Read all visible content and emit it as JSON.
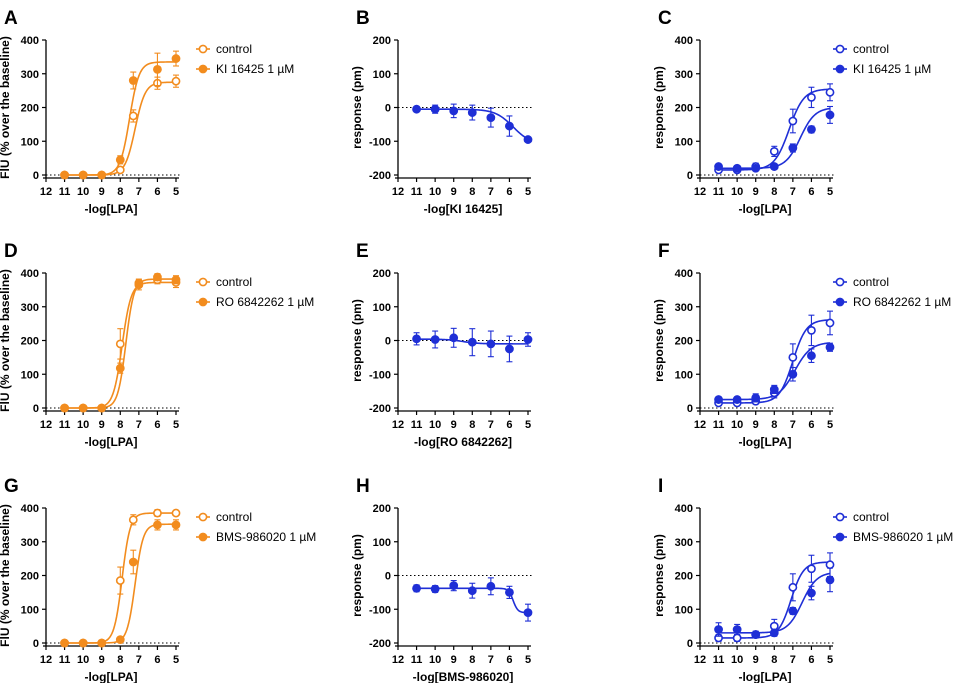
{
  "figure": {
    "colors": {
      "orange": "#F28C1E",
      "blue": "#1F2FD6",
      "axis": "#000000"
    },
    "panels_order": [
      "A",
      "B",
      "C",
      "D",
      "E",
      "F",
      "G",
      "H",
      "I"
    ]
  },
  "chart_data": [
    {
      "panel": "A",
      "type": "scatter",
      "ylabel": "FlU (% over the baseline)",
      "xlabel": "-log[LPA]",
      "xlim": [
        12,
        5
      ],
      "ylim": [
        0,
        400
      ],
      "xticks": [
        "12",
        "11",
        "10",
        "9",
        "8",
        "7",
        "6",
        "5"
      ],
      "yticks": [
        "0",
        "100",
        "200",
        "300",
        "400"
      ],
      "color": "orange",
      "legend": [
        "control",
        "KI 16425 1 µM"
      ],
      "x": [
        11,
        10,
        9,
        8,
        7.3,
        6,
        5
      ],
      "series": [
        {
          "name": "control",
          "marker": "open",
          "values": [
            0,
            0,
            0,
            15,
            175,
            272,
            278
          ],
          "errors": [
            3,
            3,
            3,
            8,
            18,
            18,
            18
          ]
        },
        {
          "name": "KI 16425 1 µM",
          "marker": "filled",
          "values": [
            0,
            0,
            0,
            45,
            280,
            313,
            345
          ],
          "errors": [
            3,
            3,
            3,
            12,
            25,
            48,
            22
          ]
        }
      ],
      "fits": [
        {
          "bottom": 0,
          "top": 275,
          "logec50": 7.2,
          "hill": 1.6
        },
        {
          "bottom": 0,
          "top": 335,
          "logec50": 7.5,
          "hill": 1.7
        }
      ]
    },
    {
      "panel": "B",
      "type": "scatter",
      "ylabel": "response (pm)",
      "xlabel": "-log[KI 16425]",
      "xlim": [
        12,
        5
      ],
      "ylim": [
        -200,
        200
      ],
      "xticks": [
        "12",
        "11",
        "10",
        "9",
        "8",
        "7",
        "6",
        "5"
      ],
      "yticks": [
        "-200",
        "-100",
        "0",
        "100",
        "200"
      ],
      "color": "blue",
      "legend": [],
      "x": [
        11,
        10,
        9,
        8,
        7,
        6,
        5
      ],
      "series": [
        {
          "name": "KI 16425",
          "marker": "filled",
          "values": [
            -5,
            -5,
            -10,
            -15,
            -30,
            -55,
            -95
          ],
          "errors": [
            8,
            12,
            20,
            22,
            28,
            30,
            5
          ]
        }
      ],
      "fits": [
        {
          "bottom": -5,
          "top": -110,
          "logec50": 5.8,
          "hill": 0.9
        }
      ]
    },
    {
      "panel": "C",
      "type": "scatter",
      "ylabel": "response (pm)",
      "xlabel": "-log[LPA]",
      "xlim": [
        12,
        5
      ],
      "ylim": [
        0,
        400
      ],
      "xticks": [
        "12",
        "11",
        "10",
        "9",
        "8",
        "7",
        "6",
        "5"
      ],
      "yticks": [
        "0",
        "100",
        "200",
        "300",
        "400"
      ],
      "color": "blue",
      "legend": [
        "control",
        "KI 16425 1 µM"
      ],
      "x": [
        11,
        10,
        9,
        8,
        7,
        6,
        5
      ],
      "series": [
        {
          "name": "control",
          "marker": "open",
          "values": [
            15,
            15,
            25,
            70,
            160,
            230,
            245
          ],
          "errors": [
            8,
            8,
            10,
            15,
            35,
            30,
            25
          ]
        },
        {
          "name": "KI 16425 1 µM",
          "marker": "filled",
          "values": [
            25,
            20,
            20,
            25,
            80,
            135,
            178
          ],
          "errors": [
            5,
            5,
            5,
            8,
            12,
            10,
            25
          ]
        }
      ],
      "fits": [
        {
          "bottom": 15,
          "top": 255,
          "logec50": 7.2,
          "hill": 1.1
        },
        {
          "bottom": 20,
          "top": 200,
          "logec50": 6.6,
          "hill": 1.1
        }
      ]
    },
    {
      "panel": "D",
      "type": "scatter",
      "ylabel": "FlU (% over the baseline)",
      "xlabel": "-log[LPA]",
      "xlim": [
        12,
        5
      ],
      "ylim": [
        0,
        400
      ],
      "xticks": [
        "12",
        "11",
        "10",
        "9",
        "8",
        "7",
        "6",
        "5"
      ],
      "yticks": [
        "0",
        "100",
        "200",
        "300",
        "400"
      ],
      "color": "orange",
      "legend": [
        "control",
        "RO 6842262 1 µM"
      ],
      "x": [
        11,
        10,
        9,
        8,
        7,
        6,
        5
      ],
      "series": [
        {
          "name": "control",
          "marker": "open",
          "values": [
            0,
            0,
            0,
            190,
            365,
            380,
            372
          ],
          "errors": [
            3,
            3,
            3,
            45,
            15,
            12,
            15
          ]
        },
        {
          "name": "RO 6842262 1 µM",
          "marker": "filled",
          "values": [
            0,
            0,
            0,
            118,
            370,
            388,
            380
          ],
          "errors": [
            3,
            3,
            3,
            15,
            12,
            10,
            12
          ]
        }
      ],
      "fits": [
        {
          "bottom": 0,
          "top": 372,
          "logec50": 7.9,
          "hill": 1.8
        },
        {
          "bottom": 0,
          "top": 382,
          "logec50": 7.7,
          "hill": 2.0
        }
      ]
    },
    {
      "panel": "E",
      "type": "scatter",
      "ylabel": "response (pm)",
      "xlabel": "-log[RO 6842262]",
      "xlim": [
        12,
        5
      ],
      "ylim": [
        -200,
        200
      ],
      "xticks": [
        "12",
        "11",
        "10",
        "9",
        "8",
        "7",
        "6",
        "5"
      ],
      "yticks": [
        "-200",
        "-100",
        "0",
        "100",
        "200"
      ],
      "color": "blue",
      "legend": [],
      "x": [
        11,
        10,
        9,
        8,
        7,
        6,
        5
      ],
      "series": [
        {
          "name": "RO 6842262",
          "marker": "filled",
          "values": [
            5,
            3,
            8,
            -5,
            -10,
            -25,
            3
          ],
          "errors": [
            18,
            25,
            28,
            40,
            38,
            38,
            20
          ]
        }
      ],
      "fits": [
        {
          "bottom": 4,
          "top": -10,
          "logec50": 8.5,
          "hill": 1.0
        }
      ]
    },
    {
      "panel": "F",
      "type": "scatter",
      "ylabel": "response (pm)",
      "xlabel": "-log[LPA]",
      "xlim": [
        12,
        5
      ],
      "ylim": [
        0,
        400
      ],
      "xticks": [
        "12",
        "11",
        "10",
        "9",
        "8",
        "7",
        "6",
        "5"
      ],
      "yticks": [
        "0",
        "100",
        "200",
        "300",
        "400"
      ],
      "color": "blue",
      "legend": [
        "control",
        "RO 6842262 1 µM"
      ],
      "x": [
        11,
        10,
        9,
        8,
        7,
        6,
        5
      ],
      "series": [
        {
          "name": "control",
          "marker": "open",
          "values": [
            15,
            15,
            20,
            45,
            150,
            230,
            252
          ],
          "errors": [
            8,
            8,
            8,
            15,
            40,
            45,
            35
          ]
        },
        {
          "name": "RO 6842262 1 µM",
          "marker": "filled",
          "values": [
            25,
            25,
            30,
            55,
            100,
            155,
            180
          ],
          "errors": [
            8,
            8,
            12,
            12,
            20,
            20,
            12
          ]
        }
      ],
      "fits": [
        {
          "bottom": 15,
          "top": 262,
          "logec50": 7.0,
          "hill": 1.2
        },
        {
          "bottom": 25,
          "top": 195,
          "logec50": 6.9,
          "hill": 1.0
        }
      ]
    },
    {
      "panel": "G",
      "type": "scatter",
      "ylabel": "FlU (% over the baseline)",
      "xlabel": "-log[LPA]",
      "xlim": [
        12,
        5
      ],
      "ylim": [
        0,
        400
      ],
      "xticks": [
        "12",
        "11",
        "10",
        "9",
        "8",
        "7",
        "6",
        "5"
      ],
      "yticks": [
        "0",
        "100",
        "200",
        "300",
        "400"
      ],
      "color": "orange",
      "legend": [
        "control",
        "BMS-986020 1 µM"
      ],
      "x": [
        11,
        10,
        9,
        8,
        7.3,
        6,
        5
      ],
      "series": [
        {
          "name": "control",
          "marker": "open",
          "values": [
            0,
            0,
            0,
            185,
            365,
            385,
            385
          ],
          "errors": [
            3,
            3,
            3,
            40,
            15,
            10,
            8
          ]
        },
        {
          "name": "BMS-986020 1 µM",
          "marker": "filled",
          "values": [
            0,
            0,
            0,
            10,
            240,
            350,
            350
          ],
          "errors": [
            3,
            3,
            3,
            5,
            35,
            15,
            15
          ]
        }
      ],
      "fits": [
        {
          "bottom": 0,
          "top": 385,
          "logec50": 7.9,
          "hill": 2.0
        },
        {
          "bottom": 0,
          "top": 352,
          "logec50": 7.2,
          "hill": 2.0
        }
      ]
    },
    {
      "panel": "H",
      "type": "scatter",
      "ylabel": "response (pm)",
      "xlabel": "-log[BMS-986020]",
      "xlim": [
        12,
        5
      ],
      "ylim": [
        -200,
        200
      ],
      "xticks": [
        "12",
        "11",
        "10",
        "9",
        "8",
        "7",
        "6",
        "5"
      ],
      "yticks": [
        "-200",
        "-100",
        "0",
        "100",
        "200"
      ],
      "color": "blue",
      "legend": [],
      "x": [
        11,
        10,
        9,
        8,
        7,
        6,
        5
      ],
      "series": [
        {
          "name": "BMS-986020",
          "marker": "filled",
          "values": [
            -38,
            -40,
            -30,
            -45,
            -32,
            -50,
            -110
          ],
          "errors": [
            10,
            10,
            15,
            22,
            25,
            18,
            25
          ]
        }
      ],
      "fits": [
        {
          "bottom": -38,
          "top": -110,
          "logec50": 5.8,
          "hill": 3.5
        }
      ]
    },
    {
      "panel": "I",
      "type": "scatter",
      "ylabel": "response (pm)",
      "xlabel": "-log[LPA]",
      "xlim": [
        12,
        5
      ],
      "ylim": [
        0,
        400
      ],
      "xticks": [
        "12",
        "11",
        "10",
        "9",
        "8",
        "7",
        "6",
        "5"
      ],
      "yticks": [
        "0",
        "100",
        "200",
        "300",
        "400"
      ],
      "color": "blue",
      "legend": [
        "control",
        "BMS-986020 1 µM"
      ],
      "x": [
        11,
        10,
        9,
        8,
        7,
        6,
        5
      ],
      "series": [
        {
          "name": "control",
          "marker": "open",
          "values": [
            15,
            15,
            25,
            50,
            165,
            220,
            232
          ],
          "errors": [
            10,
            10,
            10,
            20,
            40,
            40,
            35
          ]
        },
        {
          "name": "BMS-986020 1 µM",
          "marker": "filled",
          "values": [
            40,
            40,
            25,
            30,
            95,
            148,
            187
          ],
          "errors": [
            20,
            15,
            8,
            10,
            10,
            20,
            35
          ]
        }
      ],
      "fits": [
        {
          "bottom": 15,
          "top": 240,
          "logec50": 7.1,
          "hill": 1.3
        },
        {
          "bottom": 30,
          "top": 210,
          "logec50": 6.5,
          "hill": 1.1
        }
      ]
    }
  ]
}
